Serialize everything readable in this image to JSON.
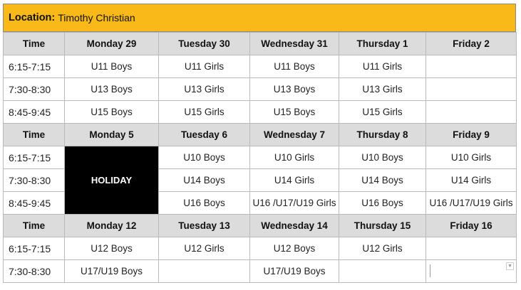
{
  "location": {
    "label": "Location:",
    "name": "Timothy Christian"
  },
  "weeks": [
    {
      "headers": [
        "Time",
        "Monday 29",
        "Tuesday 30",
        "Wednesday 31",
        "Thursday 1",
        "Friday 2"
      ],
      "rows": [
        [
          "6:15-7:15",
          "U11 Boys",
          "U11 Girls",
          "U11 Boys",
          "U11 Girls",
          ""
        ],
        [
          "7:30-8:30",
          "U13 Boys",
          "U13 Girls",
          "U13 Boys",
          "U13 Girls",
          ""
        ],
        [
          "8:45-9:45",
          "U15 Boys",
          "U15 Girls",
          "U15 Boys",
          "U15 Girls",
          ""
        ]
      ]
    },
    {
      "headers": [
        "Time",
        "Monday 5",
        "Tuesday 6",
        "Wednesday 7",
        "Thursday 8",
        "Friday 9"
      ],
      "holiday": "HOLIDAY",
      "rows": [
        [
          "6:15-7:15",
          "",
          "U10 Boys",
          "U10 Girls",
          "U10 Boys",
          "U10 Girls"
        ],
        [
          "7:30-8:30",
          "",
          "U14 Boys",
          "U14 Girls",
          "U14 Boys",
          "U14 Girls"
        ],
        [
          "8:45-9:45",
          "",
          "U16 Boys",
          "U16 /U17/U19 Girls",
          "U16 Boys",
          "U16 /U17/U19 Girls"
        ]
      ]
    },
    {
      "headers": [
        "Time",
        "Monday 12",
        "Tuesday 13",
        "Wednesday 14",
        "Thursday 15",
        "Friday 16"
      ],
      "rows": [
        [
          "6:15-7:15",
          "U12 Boys",
          "U12 Girls",
          "U12 Boys",
          "U12 Girls",
          ""
        ],
        [
          "7:30-8:30",
          "U17/U19 Boys",
          "",
          "U17/U19 Boys",
          "",
          ""
        ]
      ]
    }
  ],
  "icons": {
    "dropdown": "chevron-down-icon"
  }
}
